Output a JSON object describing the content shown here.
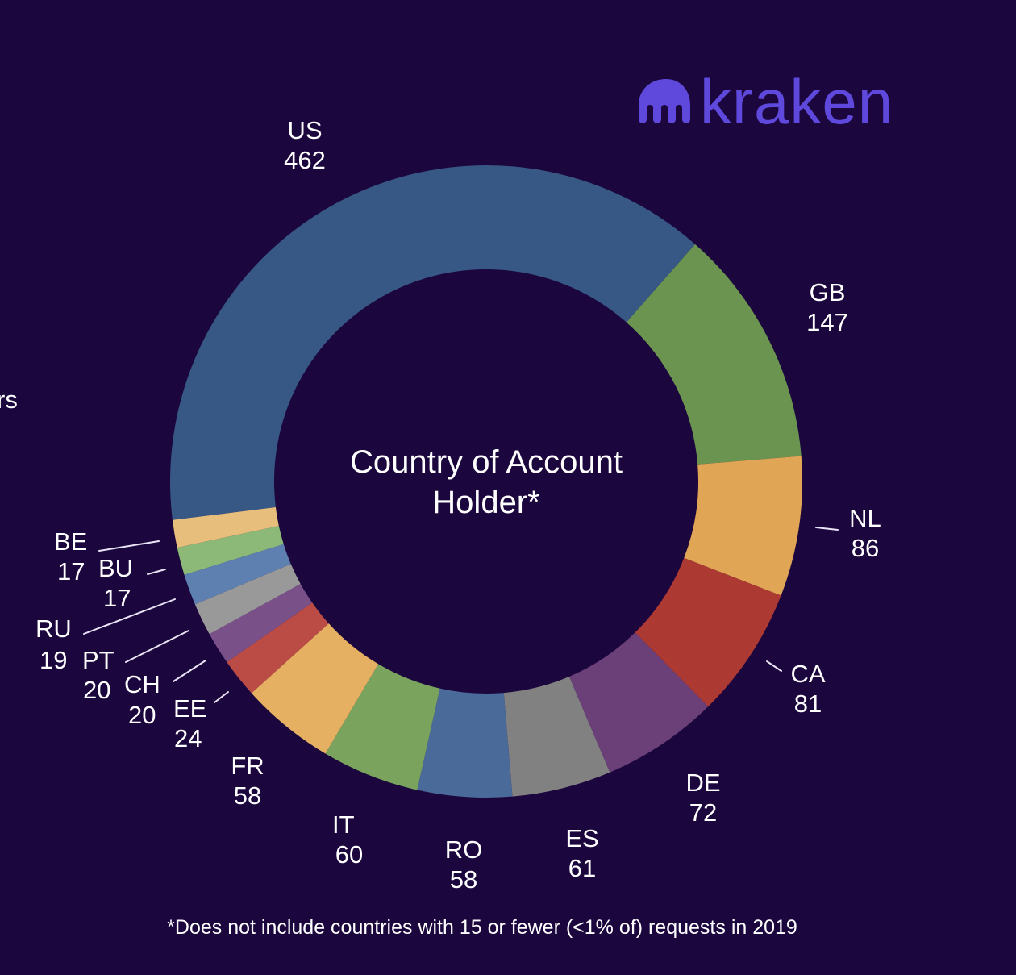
{
  "brand": {
    "name": "kraken",
    "color": "#5f48dc"
  },
  "edge_fragment": "rs",
  "chart_data": {
    "type": "pie",
    "variant": "donut",
    "title": "Country of Account Holder*",
    "footnote": "*Does not include countries with 15 or fewer (<1% of) requests in 2019",
    "start_angle_deg": 263,
    "direction": "clockwise",
    "slices": [
      {
        "label": "US",
        "value": 462,
        "color": "#375785"
      },
      {
        "label": "GB",
        "value": 147,
        "color": "#6a944f"
      },
      {
        "label": "NL",
        "value": 86,
        "color": "#e1a655"
      },
      {
        "label": "CA",
        "value": 81,
        "color": "#ad3933"
      },
      {
        "label": "DE",
        "value": 72,
        "color": "#6b3f78"
      },
      {
        "label": "ES",
        "value": 61,
        "color": "#818181"
      },
      {
        "label": "RO",
        "value": 58,
        "color": "#4a6a99"
      },
      {
        "label": "IT",
        "value": 60,
        "color": "#7aa35e"
      },
      {
        "label": "FR",
        "value": 58,
        "color": "#e6b062"
      },
      {
        "label": "EE",
        "value": 24,
        "color": "#bb4c45"
      },
      {
        "label": "CH",
        "value": 20,
        "color": "#7a5089"
      },
      {
        "label": "PT",
        "value": 20,
        "color": "#999999"
      },
      {
        "label": "RU",
        "value": 19,
        "color": "#5d80b0"
      },
      {
        "label": "BU",
        "value": 17,
        "color": "#8cb878"
      },
      {
        "label": "BE",
        "value": 17,
        "color": "#e8be7c"
      }
    ]
  },
  "labels": {
    "US": {
      "name": "US",
      "value": "462"
    },
    "GB": {
      "name": "GB",
      "value": "147"
    },
    "NL": {
      "name": "NL",
      "value": "86"
    },
    "CA": {
      "name": "CA",
      "value": "81"
    },
    "DE": {
      "name": "DE",
      "value": "72"
    },
    "ES": {
      "name": "ES",
      "value": "61"
    },
    "RO": {
      "name": "RO",
      "value": "58"
    },
    "IT": {
      "name": "IT",
      "value": "60"
    },
    "FR": {
      "name": "FR",
      "value": "58"
    },
    "EE": {
      "name": "EE",
      "value": "24"
    },
    "CH": {
      "name": "CH",
      "value": "20"
    },
    "PT": {
      "name": "PT",
      "value": "20"
    },
    "RU": {
      "name": "RU",
      "value": "19"
    },
    "BU": {
      "name": "BU",
      "value": "17"
    },
    "BE": {
      "name": "BE",
      "value": "17"
    }
  }
}
